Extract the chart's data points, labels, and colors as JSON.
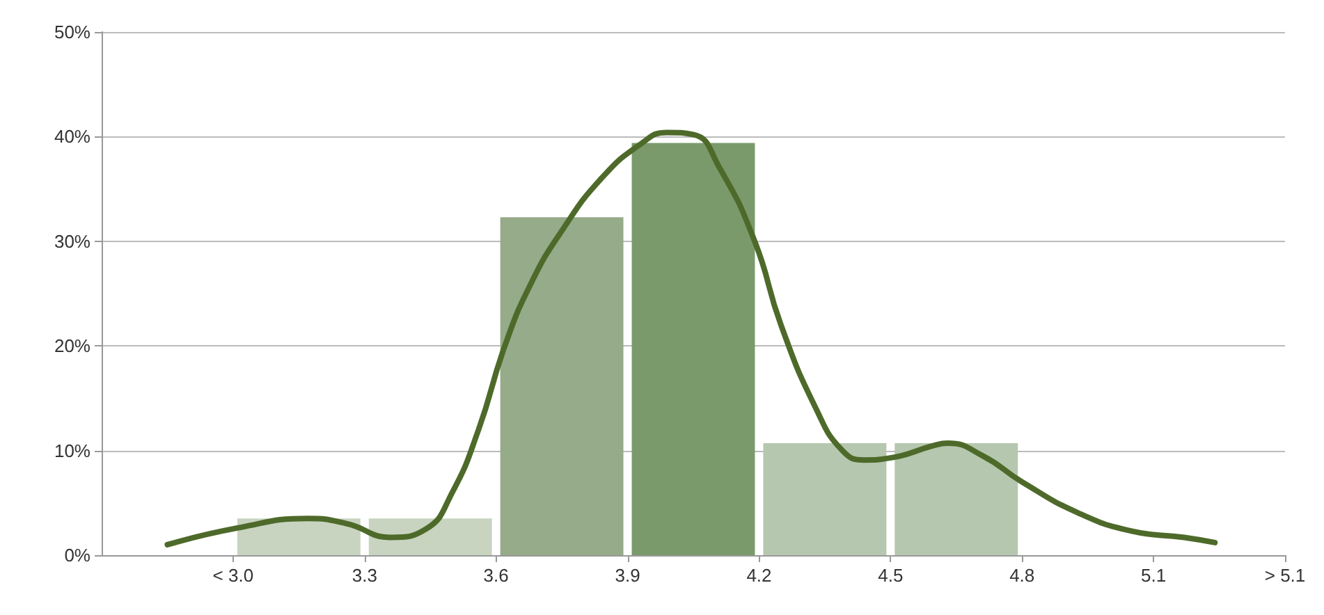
{
  "chart_data": {
    "type": "histogram",
    "series": [
      {
        "bins": [
          3.0,
          3.3,
          3.6,
          3.9,
          4.2,
          4.5,
          4.8
        ],
        "values": [
          3.5,
          3.5,
          32.3,
          39.4,
          10.7,
          10.7
        ],
        "colors": [
          "#c8d4c0",
          "#c8d4c0",
          "#96ab89",
          "#7a9a6c",
          "#b5c7ae",
          "#b5c7ae"
        ]
      },
      {
        "type": "line",
        "color": "#4e6a2a",
        "x": [
          2.85,
          3.01,
          3.17,
          3.26,
          3.36,
          3.44,
          3.5,
          3.56,
          3.62,
          3.68,
          3.75,
          3.84,
          3.93,
          3.99,
          4.05,
          4.11,
          4.19,
          4.25,
          4.33,
          4.39,
          4.44,
          4.5,
          4.6,
          4.63,
          4.71,
          4.8,
          4.93,
          5.05,
          5.17,
          5.24
        ],
        "values": [
          1.0,
          2.6,
          3.5,
          3.0,
          1.7,
          2.5,
          6,
          12,
          20,
          26,
          31,
          36,
          39.3,
          40.4,
          40.2,
          37,
          30,
          22,
          14,
          10,
          9.1,
          9.3,
          10.5,
          10.7,
          9.5,
          7,
          4,
          2.3,
          1.7,
          1.2
        ]
      }
    ],
    "xlim": [
      2.7,
      5.4
    ],
    "xticks": [
      {
        "value": 3.0,
        "label": "< 3.0"
      },
      3.3,
      3.6,
      3.9,
      4.2,
      4.5,
      4.8,
      5.1,
      {
        "value": 5.4,
        "label": "> 5.1"
      }
    ],
    "ylim": [
      0,
      50
    ],
    "yticks": [
      {
        "value": 0,
        "label": "0%"
      },
      {
        "value": 10,
        "label": "10%"
      },
      {
        "value": 20,
        "label": "20%"
      },
      {
        "value": 30,
        "label": "30%"
      },
      {
        "value": 40,
        "label": "40%"
      },
      {
        "value": 50,
        "label": "50%"
      }
    ],
    "grid": "y",
    "marker": "none"
  }
}
